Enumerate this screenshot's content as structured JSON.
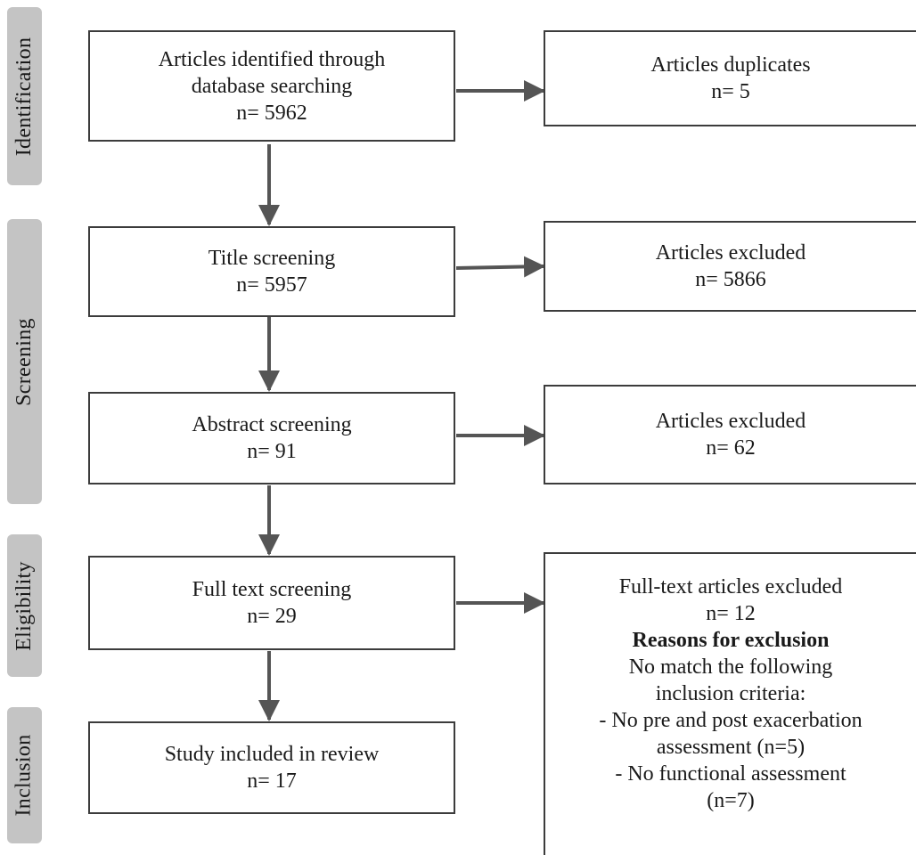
{
  "phases": {
    "identification": "Identification",
    "screening": "Screening",
    "eligibility": "Eligibility",
    "inclusion": "Inclusion"
  },
  "boxes": {
    "identified": {
      "lines": [
        "Articles identified through",
        "database searching"
      ],
      "count": "n= 5962"
    },
    "duplicates": {
      "title": "Articles duplicates",
      "count": "n= 5"
    },
    "title_screening": {
      "title": "Title screening",
      "count": "n= 5957"
    },
    "title_excluded": {
      "title": "Articles excluded",
      "count": "n= 5866"
    },
    "abstract_screening": {
      "title": "Abstract screening",
      "count": "n= 91"
    },
    "abstract_excluded": {
      "title": "Articles excluded",
      "count": "n= 62"
    },
    "fulltext_screening": {
      "title": "Full text screening",
      "count": "n= 29"
    },
    "fulltext_excluded": {
      "title": "Full-text articles excluded",
      "count": "n= 12",
      "reasons_heading": "Reasons for exclusion",
      "lines": [
        "No match the following",
        "inclusion criteria:",
        "- No pre and post exacerbation",
        "assessment (n=5)",
        "- No functional assessment",
        "(n=7)"
      ]
    },
    "included": {
      "title": "Study included in review",
      "count": "n= 17"
    }
  },
  "colors": {
    "border": "#3c3c3c",
    "arrow": "#555555",
    "phase_bg": "#c4c4c4"
  }
}
